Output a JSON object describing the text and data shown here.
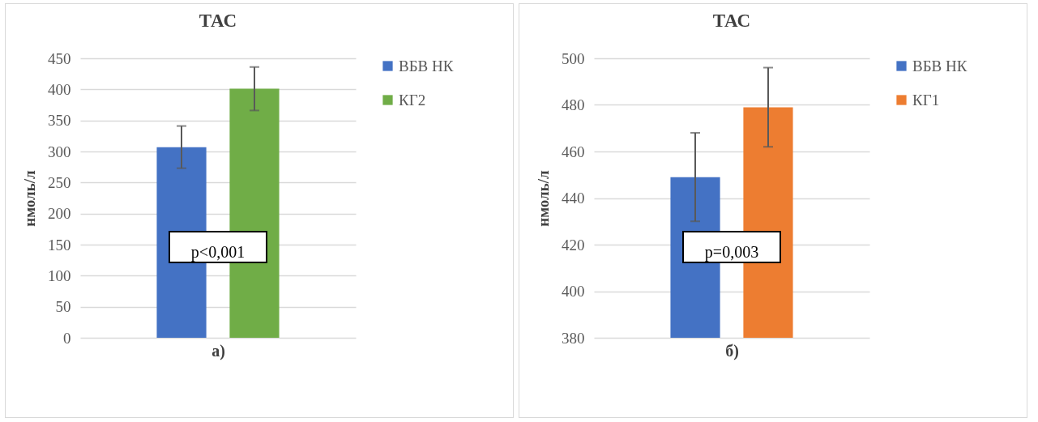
{
  "chart_data": [
    {
      "type": "bar",
      "title": "ТАС",
      "xlabel": "а)",
      "ylabel": "нмоль/л",
      "categories": [
        null
      ],
      "ylim": [
        0,
        450
      ],
      "yticks": [
        0,
        50,
        100,
        150,
        200,
        250,
        300,
        350,
        400,
        450
      ],
      "grid": "y",
      "legend": "right",
      "annotations": [
        "p<0,001"
      ],
      "series": [
        {
          "name": "ВБВ НК",
          "color": "#4472c4",
          "values": [
            307
          ],
          "errors": [
            34
          ]
        },
        {
          "name": "КГ2",
          "color": "#70ad47",
          "values": [
            401
          ],
          "errors": [
            35
          ]
        }
      ]
    },
    {
      "type": "bar",
      "title": "ТАС",
      "xlabel": "б)",
      "ylabel": "нмоль/л",
      "categories": [
        null
      ],
      "ylim": [
        380,
        500
      ],
      "yticks": [
        380,
        400,
        420,
        440,
        460,
        480,
        500
      ],
      "grid": "y",
      "legend": "right",
      "annotations": [
        "p=0,003"
      ],
      "series": [
        {
          "name": "ВБВ НК",
          "color": "#4472c4",
          "values": [
            449
          ],
          "errors": [
            19
          ]
        },
        {
          "name": "КГ1",
          "color": "#ed7d31",
          "values": [
            479
          ],
          "errors": [
            17
          ]
        }
      ]
    }
  ]
}
